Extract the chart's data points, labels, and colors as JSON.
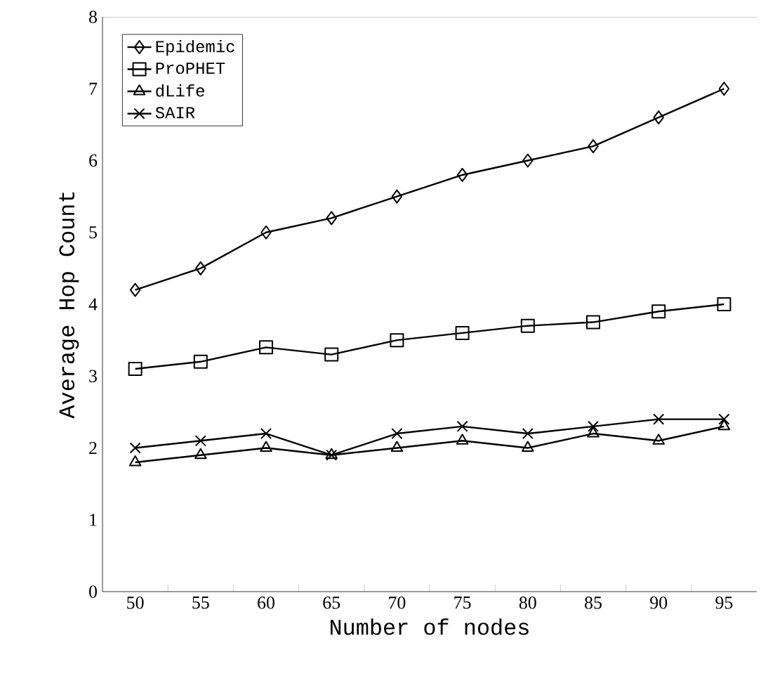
{
  "chart_data": {
    "type": "line",
    "xlabel": "Number of nodes",
    "ylabel": "Average Hop Count",
    "categories": [
      "50",
      "55",
      "60",
      "65",
      "70",
      "75",
      "80",
      "85",
      "90",
      "95"
    ],
    "series": [
      {
        "name": "Epidemic",
        "color": "#000000",
        "marker": "diamond",
        "values": [
          4.2,
          4.5,
          5.0,
          5.2,
          5.5,
          5.8,
          6.0,
          6.2,
          6.6,
          7.0
        ]
      },
      {
        "name": "ProPHET",
        "color": "#000000",
        "marker": "square",
        "values": [
          3.1,
          3.2,
          3.4,
          3.3,
          3.5,
          3.6,
          3.7,
          3.75,
          3.9,
          4.0
        ]
      },
      {
        "name": "dLife",
        "color": "#000000",
        "marker": "triangle",
        "values": [
          1.8,
          1.9,
          2.0,
          1.9,
          2.0,
          2.1,
          2.0,
          2.2,
          2.1,
          2.3
        ]
      },
      {
        "name": "SAIR",
        "color": "#000000",
        "marker": "cross",
        "values": [
          2.0,
          2.1,
          2.2,
          1.9,
          2.2,
          2.3,
          2.2,
          2.3,
          2.4,
          2.4
        ]
      }
    ],
    "ylim": [
      0,
      8
    ],
    "yticks": [
      0,
      1,
      2,
      3,
      4,
      5,
      6,
      7,
      8
    ],
    "grid": false,
    "legend": "top left",
    "line_style": "solid"
  }
}
